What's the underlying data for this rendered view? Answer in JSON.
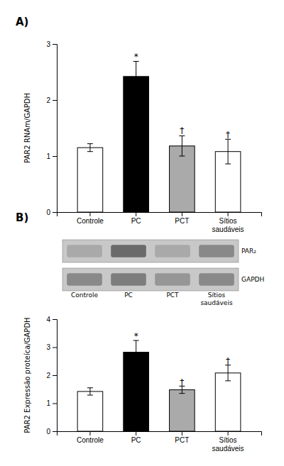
{
  "chart_data": [
    {
      "type": "bar",
      "title": "A)",
      "categories": [
        "Controle",
        "PC",
        "PCT",
        "Sítios\nsaudáveis"
      ],
      "values": [
        1.15,
        2.42,
        1.18,
        1.08
      ],
      "errors": [
        0.07,
        0.27,
        0.18,
        0.22
      ],
      "colors": [
        "white",
        "black",
        "#aaaaaa",
        "white"
      ],
      "ylabel": "PAR2 RNAm/GAPDH",
      "ylim": [
        0,
        3
      ],
      "yticks": [
        0,
        1,
        2,
        3
      ],
      "annotations": [
        {
          "category": "PC",
          "text": "*",
          "y": 2.72
        },
        {
          "category": "PCT",
          "text": "†",
          "y": 1.4
        },
        {
          "category": "Sítios\nsaudáveis",
          "text": "†",
          "y": 1.33
        }
      ]
    },
    {
      "type": "heatmap",
      "title": "B)",
      "categories": [
        "Controle",
        "PC",
        "PCT",
        "Sítios\nsaudáveis"
      ],
      "rows": [
        "PAR₂",
        "GAPDH"
      ],
      "cells": [
        [
          0.45,
          0.78,
          0.45,
          0.62
        ],
        [
          0.62,
          0.68,
          0.55,
          0.62
        ]
      ]
    },
    {
      "type": "bar",
      "categories": [
        "Controle",
        "PC",
        "PCT",
        "Sítios\nsaudáveis"
      ],
      "values": [
        1.42,
        2.82,
        1.48,
        2.08
      ],
      "errors": [
        0.13,
        0.42,
        0.13,
        0.28
      ],
      "colors": [
        "white",
        "black",
        "#aaaaaa",
        "white"
      ],
      "ylabel": "PAR2 Expressão proteíca/GAPDH",
      "ylim": [
        0,
        4
      ],
      "yticks": [
        0,
        1,
        2,
        3,
        4
      ],
      "annotations": [
        {
          "category": "PC",
          "text": "*",
          "y": 3.28
        },
        {
          "category": "PCT",
          "text": "†",
          "y": 1.65
        },
        {
          "category": "Sítios\nsaudáveis",
          "text": "†",
          "y": 2.4
        }
      ]
    }
  ]
}
